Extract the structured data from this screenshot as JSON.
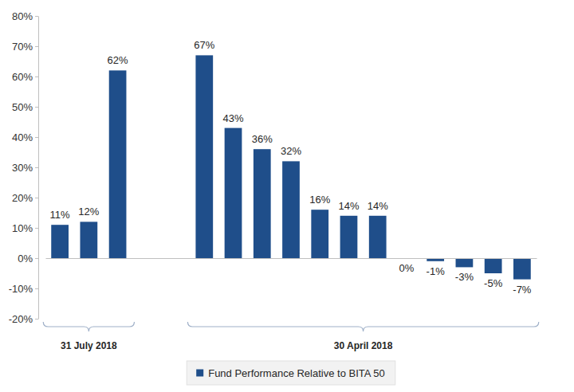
{
  "chart_data": {
    "type": "bar",
    "categories": [
      null,
      null,
      null,
      null,
      null,
      null,
      null,
      null,
      null,
      null,
      null,
      null,
      null,
      null,
      null,
      null,
      null
    ],
    "series": [
      {
        "name": "Fund Performance Relative to BITA 50",
        "color": "#1f4e8a",
        "values": [
          11,
          12,
          62,
          null,
          null,
          67,
          43,
          36,
          32,
          16,
          14,
          14,
          0,
          -1,
          -3,
          -5,
          -7
        ],
        "value_labels": [
          "11%",
          "12%",
          "62%",
          null,
          null,
          "67%",
          "43%",
          "36%",
          "32%",
          "16%",
          "14%",
          "14%",
          "0%",
          "-1%",
          "-3%",
          "-5%",
          "-7%"
        ]
      }
    ],
    "groups": [
      {
        "label": "31 July 2018",
        "start": 0,
        "end": 2
      },
      {
        "label": "30 April 2018",
        "start": 5,
        "end": 16
      }
    ],
    "ylim": [
      -20,
      80
    ],
    "yticks": [
      {
        "value": -20,
        "label": "-20%"
      },
      {
        "value": -10,
        "label": "-10%"
      },
      {
        "value": 0,
        "label": "0%"
      },
      {
        "value": 10,
        "label": "10%"
      },
      {
        "value": 20,
        "label": "20%"
      },
      {
        "value": 30,
        "label": "30%"
      },
      {
        "value": 40,
        "label": "40%"
      },
      {
        "value": 50,
        "label": "50%"
      },
      {
        "value": 60,
        "label": "60%"
      },
      {
        "value": 70,
        "label": "70%"
      },
      {
        "value": 80,
        "label": "80%"
      }
    ],
    "grid": false,
    "legend": "bottom",
    "data_labels": true,
    "tick_labels": "y"
  }
}
